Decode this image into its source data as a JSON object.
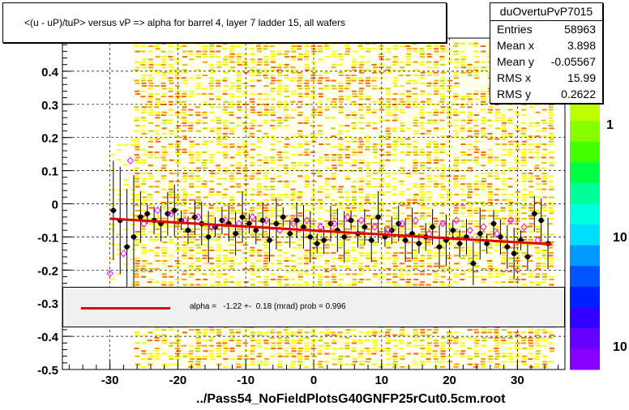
{
  "title": "<(u - uP)/tuP> versus   vP => alpha for barrel 4, layer 7 ladder 15, all wafers",
  "stats": {
    "name": "duOvertuPvP7015",
    "rows": [
      {
        "label": "Entries",
        "value": "58963"
      },
      {
        "label": "Mean x",
        "value": "3.898"
      },
      {
        "label": "Mean y",
        "value": "-0.05567"
      },
      {
        "label": "RMS x",
        "value": "15.99"
      },
      {
        "label": "RMS y",
        "value": "0.2622"
      }
    ]
  },
  "fit": {
    "text": "alpha =   -1.22 +-  0.18 (mrad) prob = 0.996",
    "line_color": "#e00000"
  },
  "filename": "../Pass54_NoFieldPlotsG40GNFP25rCut0.5cm.root",
  "zaxis": {
    "labels": [
      "1",
      "10",
      "10"
    ]
  },
  "colors": {
    "fill_yellow": "#ffff00",
    "hist_yellow": "#f2f200",
    "orange": "#ff9900",
    "red_fit": "#e00000",
    "magenta": "#ff00ff"
  },
  "chart_data": {
    "type": "scatter",
    "xlim": [
      -37,
      37
    ],
    "ylim": [
      -0.5,
      0.5
    ],
    "xticks": [
      -30,
      -20,
      -10,
      0,
      10,
      20,
      30
    ],
    "yticks": [
      -0.5,
      -0.4,
      -0.3,
      -0.2,
      -0.1,
      0,
      0.1,
      0.2,
      0.3,
      0.4
    ],
    "ytick_labels": [
      "-0.5",
      "-0.4",
      "-0.3",
      "-0.2",
      "-0.1",
      "0",
      "0.1",
      "0.2",
      "0.3",
      "0.4"
    ],
    "xtick_labels": [
      "-30",
      "-20",
      "-10",
      "0",
      "10",
      "20",
      "30"
    ],
    "grid": true,
    "fit_line": {
      "x": [
        -30,
        35
      ],
      "y": [
        -0.045,
        -0.122
      ]
    },
    "series": [
      {
        "marker": "filled-circle",
        "x": [
          -29.5,
          -28.5,
          -27.5,
          -26.5,
          -25.5,
          -24.5,
          -23.5,
          -22.5,
          -21.5,
          -20.5,
          -19.5,
          -18.5,
          -17.5,
          -16.5,
          -15.5,
          -14.5,
          -13.5,
          -12.5,
          -11.5,
          -10.5,
          -9.5,
          -8.5,
          -7.5,
          -6.5,
          -5.5,
          -4.5,
          -3.5,
          -2.5,
          -1.5,
          -0.5,
          0.5,
          1.5,
          2.5,
          3.5,
          4.5,
          5.5,
          6.5,
          7.5,
          8.5,
          9.5,
          10.5,
          11.5,
          12.5,
          13.5,
          14.5,
          15.5,
          16.5,
          17.5,
          18.5,
          19.5,
          20.5,
          21.5,
          22.5,
          23.5,
          24.5,
          25.5,
          26.5,
          27.5,
          28.5,
          29.5,
          30.5,
          31.5,
          32.5,
          33.5,
          34.5
        ],
        "y": [
          -0.02,
          -0.05,
          -0.13,
          -0.1,
          -0.04,
          -0.03,
          -0.05,
          -0.06,
          -0.03,
          -0.02,
          -0.05,
          -0.08,
          -0.04,
          -0.06,
          -0.1,
          -0.07,
          -0.05,
          -0.06,
          -0.09,
          -0.04,
          -0.06,
          -0.08,
          -0.05,
          -0.11,
          -0.06,
          -0.04,
          -0.09,
          -0.05,
          -0.07,
          -0.1,
          -0.12,
          -0.11,
          -0.06,
          -0.08,
          -0.1,
          -0.05,
          -0.09,
          -0.07,
          -0.11,
          -0.04,
          -0.1,
          -0.08,
          -0.06,
          -0.11,
          -0.09,
          -0.12,
          -0.1,
          -0.07,
          -0.13,
          -0.11,
          -0.08,
          -0.12,
          -0.1,
          -0.18,
          -0.09,
          -0.12,
          -0.06,
          -0.1,
          -0.13,
          -0.15,
          -0.11,
          -0.16,
          -0.03,
          -0.05,
          -0.12
        ]
      },
      {
        "marker": "open-diamond",
        "x": [
          -30,
          -28,
          -27,
          -25,
          -23,
          -21,
          -19,
          -17,
          -15,
          -13,
          -11,
          -9,
          -7,
          -5,
          -3,
          -1,
          1,
          3,
          5,
          7,
          9,
          11,
          13,
          15,
          17,
          19,
          21,
          23,
          25,
          27,
          29,
          31,
          33
        ],
        "y": [
          -0.21,
          -0.15,
          0.13,
          -0.06,
          -0.02,
          -0.03,
          -0.05,
          -0.04,
          -0.07,
          -0.05,
          -0.06,
          -0.04,
          -0.05,
          -0.08,
          -0.06,
          -0.05,
          -0.07,
          -0.06,
          -0.04,
          -0.05,
          -0.07,
          -0.08,
          -0.06,
          -0.05,
          -0.09,
          -0.06,
          -0.05,
          -0.08,
          -0.07,
          -0.09,
          -0.05,
          -0.07,
          -0.11
        ]
      }
    ]
  }
}
